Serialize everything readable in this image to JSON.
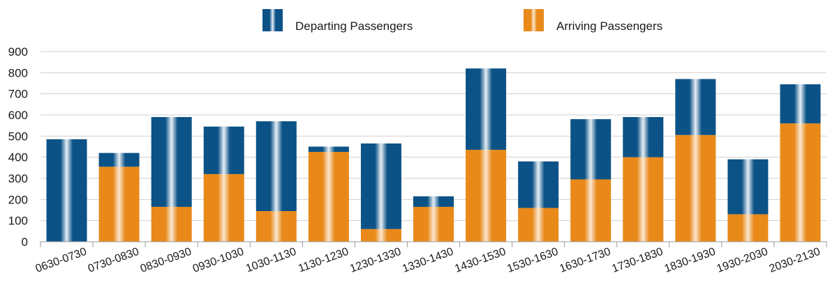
{
  "chart_data": {
    "type": "bar",
    "stacked": true,
    "categories": [
      "0630-0730",
      "0730-0830",
      "0830-0930",
      "0930-1030",
      "1030-1130",
      "1130-1230",
      "1230-1330",
      "1330-1430",
      "1430-1530",
      "1530-1630",
      "1630-1730",
      "1730-1830",
      "1830-1930",
      "1930-2030",
      "2030-2130"
    ],
    "series": [
      {
        "name": "Arriving Passengers",
        "color": "#e8891a",
        "values": [
          0,
          355,
          165,
          320,
          145,
          425,
          60,
          165,
          435,
          160,
          295,
          400,
          505,
          130,
          560
        ]
      },
      {
        "name": "Departing Passengers",
        "color": "#0b5286",
        "values": [
          485,
          65,
          425,
          225,
          425,
          25,
          405,
          50,
          385,
          220,
          285,
          190,
          265,
          260,
          185
        ]
      }
    ],
    "legend_order": [
      "Departing Passengers",
      "Arriving Passengers"
    ],
    "legend_position": "top-center",
    "ylim": [
      0,
      900
    ],
    "yticks": [
      0,
      100,
      200,
      300,
      400,
      500,
      600,
      700,
      800,
      900
    ],
    "grid": true,
    "title": "",
    "xlabel": "",
    "ylabel": ""
  }
}
